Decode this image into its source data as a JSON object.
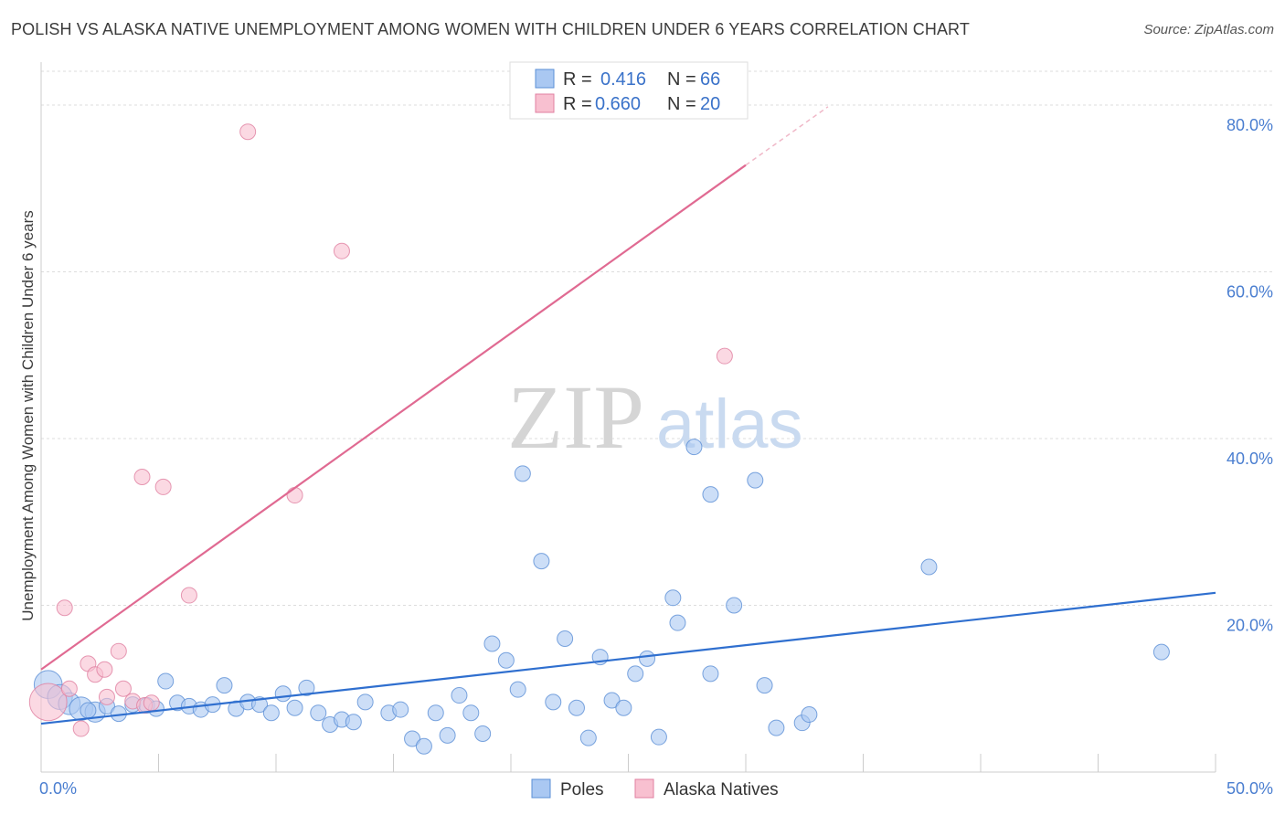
{
  "title": "POLISH VS ALASKA NATIVE UNEMPLOYMENT AMONG WOMEN WITH CHILDREN UNDER 6 YEARS CORRELATION CHART",
  "source": "Source: ZipAtlas.com",
  "watermark": {
    "zip": "ZIP",
    "atlas": "atlas"
  },
  "colors": {
    "poles_fill": "#aac8f2",
    "poles_stroke": "#5b8fd6",
    "poles_line": "#2f6fcf",
    "alaska_fill": "#f8c0d0",
    "alaska_stroke": "#e07fa0",
    "alaska_line": "#e06a92",
    "grid": "#dddddd",
    "tick_label": "#4a7ed0"
  },
  "legend": {
    "rows": [
      {
        "r_label": "R =",
        "r_value": "0.416",
        "n_label": "N =",
        "n_value": "66"
      },
      {
        "r_label": "R =",
        "r_value": "0.660",
        "n_label": "N =",
        "n_value": "20"
      }
    ]
  },
  "chart_data": {
    "type": "scatter",
    "xlabel": "",
    "ylabel": "Unemployment Among Women with Children Under 6 years",
    "xlim": [
      0,
      50
    ],
    "ylim": [
      0,
      80
    ],
    "x_tick_labels": {
      "min": "0.0%",
      "max": "50.0%"
    },
    "y_ticks": [
      {
        "value": 20,
        "label": "20.0%"
      },
      {
        "value": 40,
        "label": "40.0%"
      },
      {
        "value": 60,
        "label": "60.0%"
      },
      {
        "value": 80,
        "label": "80.0%"
      }
    ],
    "grid": true,
    "legend_position": "bottom-center",
    "series": [
      {
        "name": "Poles",
        "r": 0.416,
        "n": 66,
        "trend": {
          "x": [
            0,
            50
          ],
          "y": [
            5.8,
            21.5
          ]
        },
        "points": [
          {
            "x": 0.3,
            "y": 10.5,
            "s": 1.8
          },
          {
            "x": 0.8,
            "y": 9.0,
            "s": 1.6
          },
          {
            "x": 1.2,
            "y": 8.2,
            "s": 1.4
          },
          {
            "x": 1.7,
            "y": 7.6,
            "s": 1.5
          },
          {
            "x": 2.3,
            "y": 7.2,
            "s": 1.3
          },
          {
            "x": 2.8,
            "y": 7.9,
            "s": 1
          },
          {
            "x": 3.3,
            "y": 7.0,
            "s": 1
          },
          {
            "x": 3.9,
            "y": 8.1,
            "s": 1
          },
          {
            "x": 4.5,
            "y": 8.0,
            "s": 1
          },
          {
            "x": 4.9,
            "y": 7.6,
            "s": 1
          },
          {
            "x": 5.3,
            "y": 10.9,
            "s": 1
          },
          {
            "x": 5.8,
            "y": 8.3,
            "s": 1
          },
          {
            "x": 6.3,
            "y": 7.9,
            "s": 1
          },
          {
            "x": 6.8,
            "y": 7.5,
            "s": 1
          },
          {
            "x": 7.3,
            "y": 8.1,
            "s": 1
          },
          {
            "x": 7.8,
            "y": 10.4,
            "s": 1
          },
          {
            "x": 8.3,
            "y": 7.6,
            "s": 1
          },
          {
            "x": 8.8,
            "y": 8.4,
            "s": 1
          },
          {
            "x": 9.3,
            "y": 8.1,
            "s": 1
          },
          {
            "x": 9.8,
            "y": 7.1,
            "s": 1
          },
          {
            "x": 10.3,
            "y": 9.4,
            "s": 1
          },
          {
            "x": 10.8,
            "y": 7.7,
            "s": 1
          },
          {
            "x": 11.3,
            "y": 10.1,
            "s": 1
          },
          {
            "x": 11.8,
            "y": 7.1,
            "s": 1
          },
          {
            "x": 12.3,
            "y": 5.7,
            "s": 1
          },
          {
            "x": 12.8,
            "y": 6.3,
            "s": 1
          },
          {
            "x": 13.3,
            "y": 6.0,
            "s": 1
          },
          {
            "x": 13.8,
            "y": 8.4,
            "s": 1
          },
          {
            "x": 14.8,
            "y": 7.1,
            "s": 1
          },
          {
            "x": 15.3,
            "y": 7.5,
            "s": 1
          },
          {
            "x": 15.8,
            "y": 4.0,
            "s": 1
          },
          {
            "x": 16.3,
            "y": 3.1,
            "s": 1
          },
          {
            "x": 16.8,
            "y": 7.1,
            "s": 1
          },
          {
            "x": 17.3,
            "y": 4.4,
            "s": 1
          },
          {
            "x": 17.8,
            "y": 9.2,
            "s": 1
          },
          {
            "x": 18.3,
            "y": 7.1,
            "s": 1
          },
          {
            "x": 18.8,
            "y": 4.6,
            "s": 1
          },
          {
            "x": 19.2,
            "y": 15.4,
            "s": 1
          },
          {
            "x": 19.8,
            "y": 13.4,
            "s": 1
          },
          {
            "x": 20.3,
            "y": 9.9,
            "s": 1
          },
          {
            "x": 20.5,
            "y": 35.8,
            "s": 1
          },
          {
            "x": 21.3,
            "y": 25.3,
            "s": 1
          },
          {
            "x": 21.8,
            "y": 8.4,
            "s": 1
          },
          {
            "x": 22.3,
            "y": 16.0,
            "s": 1
          },
          {
            "x": 22.8,
            "y": 7.7,
            "s": 1
          },
          {
            "x": 23.3,
            "y": 4.1,
            "s": 1
          },
          {
            "x": 23.8,
            "y": 13.8,
            "s": 1
          },
          {
            "x": 24.3,
            "y": 8.6,
            "s": 1
          },
          {
            "x": 24.8,
            "y": 7.7,
            "s": 1
          },
          {
            "x": 25.3,
            "y": 11.8,
            "s": 1
          },
          {
            "x": 25.8,
            "y": 13.6,
            "s": 1
          },
          {
            "x": 26.3,
            "y": 4.2,
            "s": 1
          },
          {
            "x": 26.9,
            "y": 20.9,
            "s": 1
          },
          {
            "x": 27.1,
            "y": 17.9,
            "s": 1
          },
          {
            "x": 27.8,
            "y": 39.0,
            "s": 1
          },
          {
            "x": 28.5,
            "y": 33.3,
            "s": 1
          },
          {
            "x": 28.5,
            "y": 11.8,
            "s": 1
          },
          {
            "x": 29.5,
            "y": 20.0,
            "s": 1
          },
          {
            "x": 30.4,
            "y": 35.0,
            "s": 1
          },
          {
            "x": 30.8,
            "y": 10.4,
            "s": 1
          },
          {
            "x": 31.3,
            "y": 5.3,
            "s": 1
          },
          {
            "x": 32.4,
            "y": 5.9,
            "s": 1
          },
          {
            "x": 32.7,
            "y": 6.9,
            "s": 1
          },
          {
            "x": 37.8,
            "y": 24.6,
            "s": 1
          },
          {
            "x": 47.7,
            "y": 14.4,
            "s": 1
          },
          {
            "x": 2.0,
            "y": 7.4,
            "s": 1
          }
        ]
      },
      {
        "name": "Alaska Natives",
        "r": 0.66,
        "n": 20,
        "trend": {
          "x": [
            0,
            30
          ],
          "y": [
            12.3,
            72.8
          ],
          "dashed_to": {
            "x": 33.5,
            "y": 79.8
          }
        },
        "points": [
          {
            "x": 0.3,
            "y": 8.4,
            "s": 2.4
          },
          {
            "x": 1.2,
            "y": 10.0,
            "s": 1
          },
          {
            "x": 1.7,
            "y": 5.2,
            "s": 1
          },
          {
            "x": 1.0,
            "y": 19.7,
            "s": 1
          },
          {
            "x": 2.0,
            "y": 13.0,
            "s": 1
          },
          {
            "x": 2.3,
            "y": 11.7,
            "s": 1
          },
          {
            "x": 2.7,
            "y": 12.3,
            "s": 1
          },
          {
            "x": 2.8,
            "y": 9.0,
            "s": 1
          },
          {
            "x": 3.3,
            "y": 14.5,
            "s": 1
          },
          {
            "x": 3.5,
            "y": 10.0,
            "s": 1
          },
          {
            "x": 3.9,
            "y": 8.5,
            "s": 1
          },
          {
            "x": 4.4,
            "y": 8.0,
            "s": 1
          },
          {
            "x": 4.7,
            "y": 8.3,
            "s": 1
          },
          {
            "x": 4.3,
            "y": 35.4,
            "s": 1
          },
          {
            "x": 5.2,
            "y": 34.2,
            "s": 1
          },
          {
            "x": 6.3,
            "y": 21.2,
            "s": 1
          },
          {
            "x": 8.8,
            "y": 76.8,
            "s": 1
          },
          {
            "x": 10.8,
            "y": 33.2,
            "s": 1
          },
          {
            "x": 12.8,
            "y": 62.5,
            "s": 1
          },
          {
            "x": 29.1,
            "y": 49.9,
            "s": 1
          }
        ]
      }
    ]
  }
}
